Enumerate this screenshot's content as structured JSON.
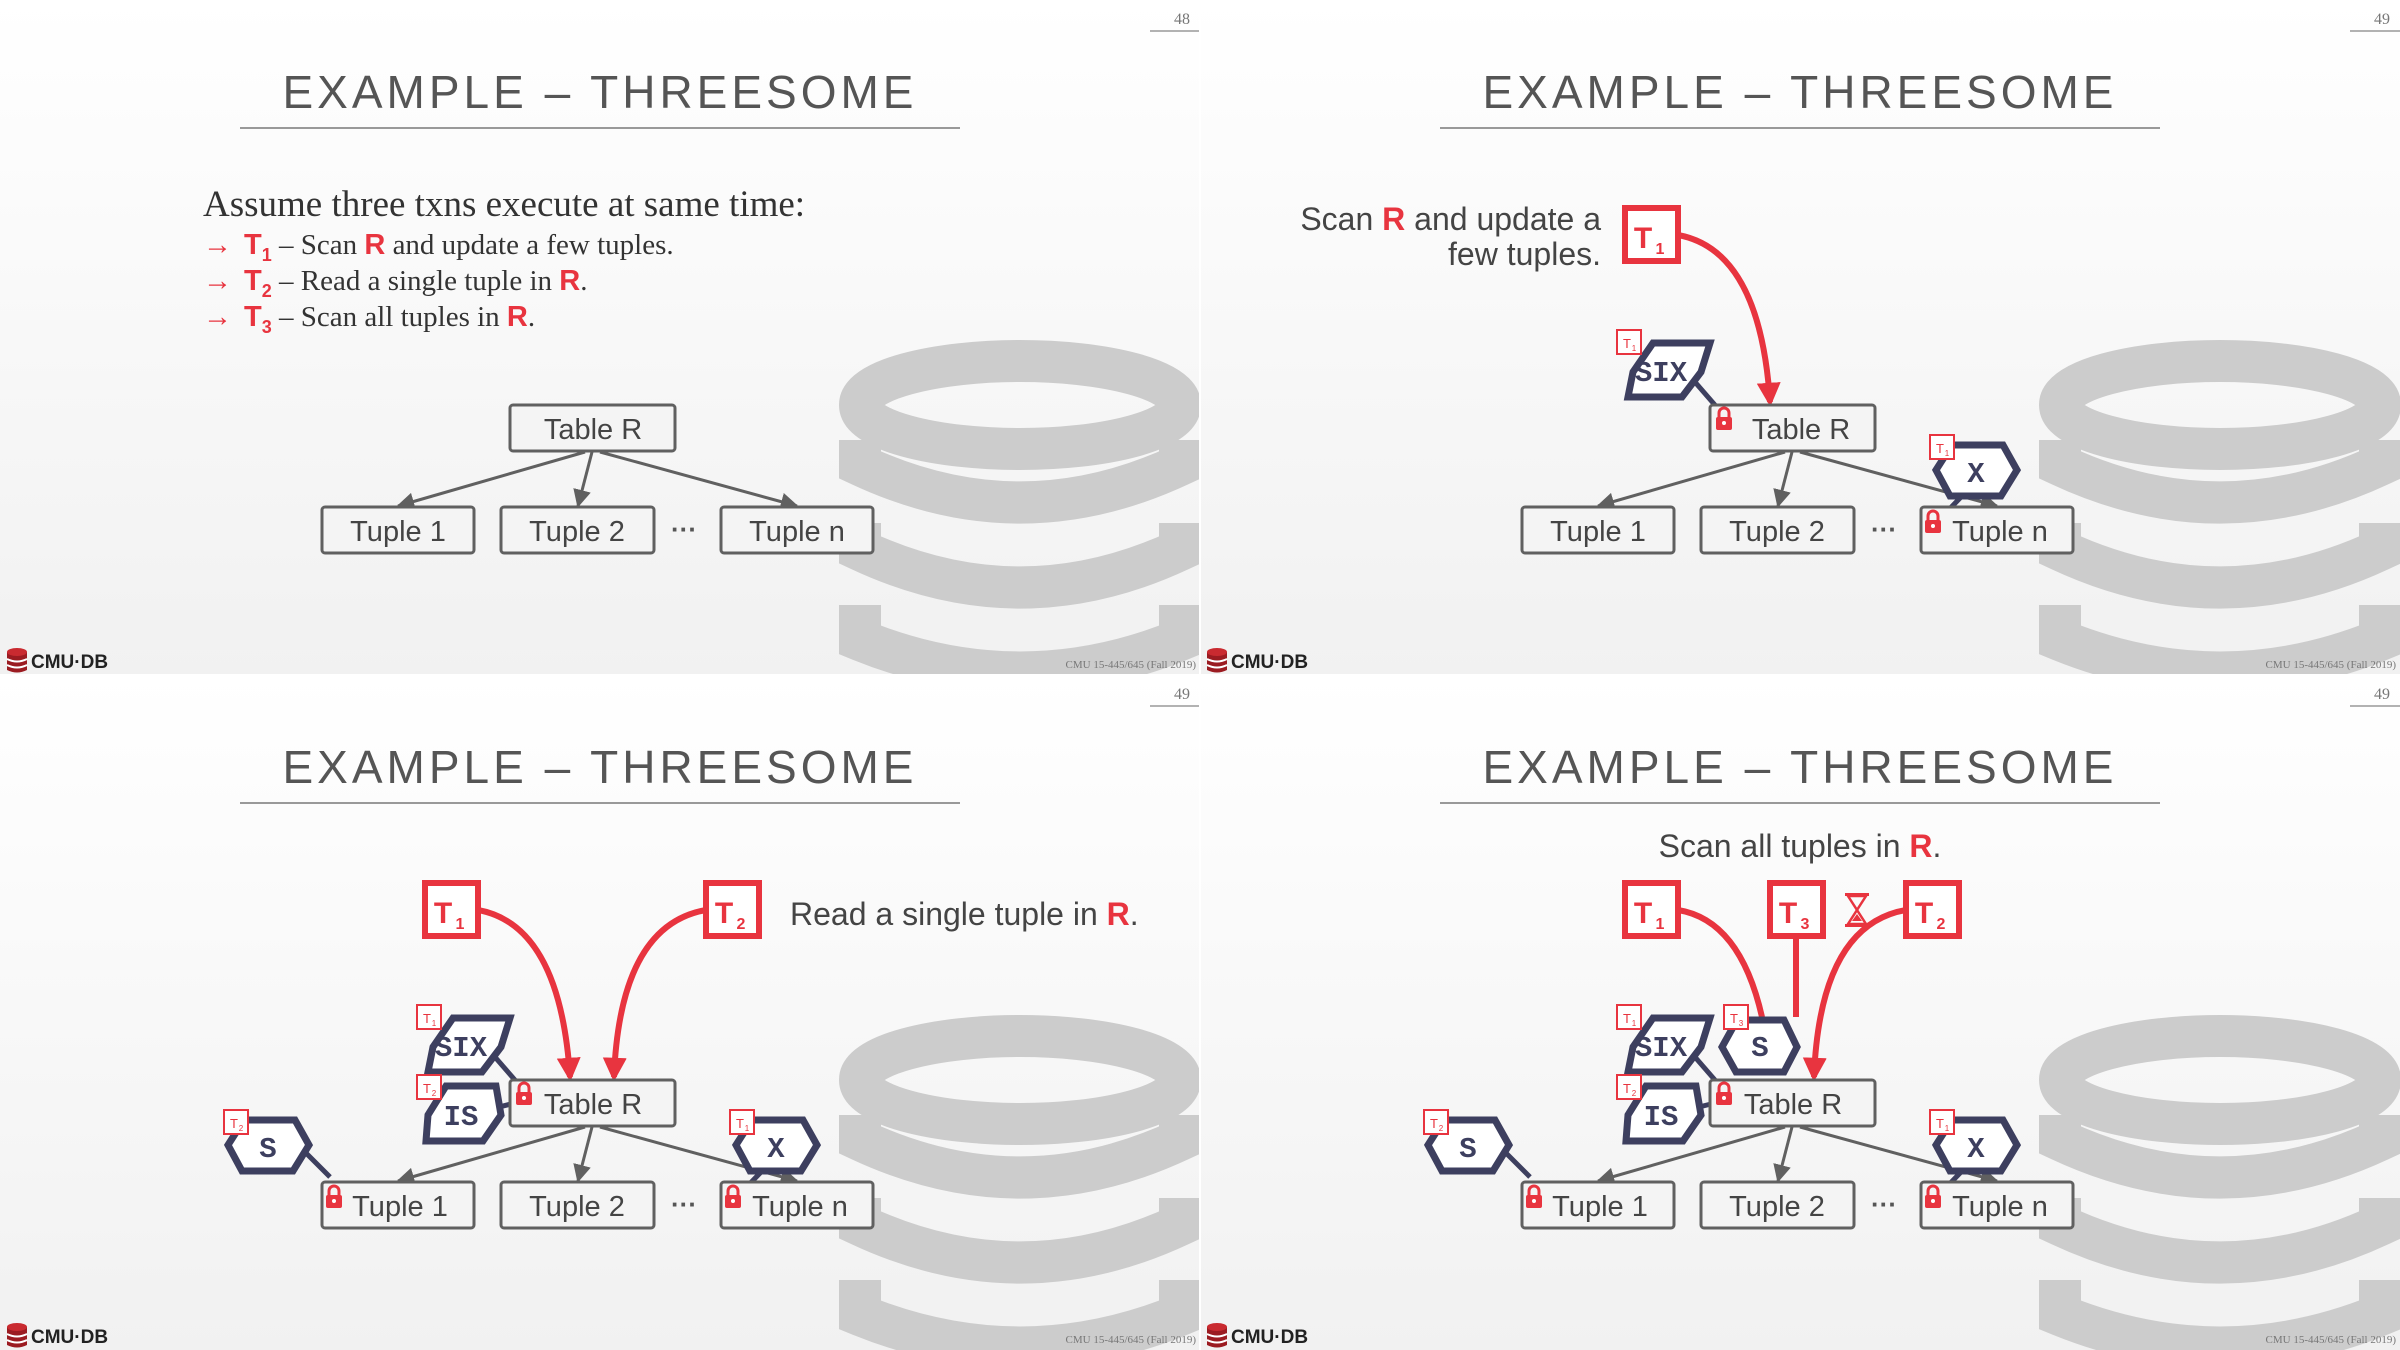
{
  "slides": [
    {
      "number": "48",
      "title": "EXAMPLE – THREESOME",
      "intro": "Assume three txns execute at same time:",
      "bullets": [
        {
          "arrow": "→",
          "txn": "T",
          "sub": "1",
          "pre": " – Scan ",
          "bold": "R",
          "post": " and update a few tuples."
        },
        {
          "arrow": "→",
          "txn": "T",
          "sub": "2",
          "pre": " – Read a single tuple in ",
          "bold": "R",
          "post": "."
        },
        {
          "arrow": "→",
          "txn": "T",
          "sub": "3",
          "pre": " – Scan all tuples in ",
          "bold": "R",
          "post": "."
        }
      ],
      "tree": {
        "table": "Table R",
        "tuple1": "Tuple 1",
        "tuple2": "Tuple 2",
        "ellipsis": "···",
        "tuplen": "Tuple n"
      },
      "footer_logo": "CMU·DB",
      "footer_course": "CMU 15-445/645 (Fall 2019)"
    },
    {
      "number": "49",
      "title": "EXAMPLE – THREESOME",
      "caption_line1_pre": "Scan ",
      "caption_line1_bold": "R",
      "caption_line1_post": " and update a",
      "caption_line2": "few tuples.",
      "txn_t1": {
        "letter": "T",
        "sub": "1"
      },
      "locks": {
        "six": "SIX",
        "x": "X",
        "badge_t1": "T",
        "badge_sub": "1"
      },
      "tree": {
        "table": "Table R",
        "tuple1": "Tuple 1",
        "tuple2": "Tuple 2",
        "ellipsis": "···",
        "tuplen": "Tuple n"
      },
      "footer_logo": "CMU·DB",
      "footer_course": "CMU 15-445/645 (Fall 2019)"
    },
    {
      "number": "49",
      "title": "EXAMPLE – THREESOME",
      "caption_pre": "Read a single tuple in ",
      "caption_bold": "R",
      "caption_post": ".",
      "txn_t1": {
        "letter": "T",
        "sub": "1"
      },
      "txn_t2": {
        "letter": "T",
        "sub": "2"
      },
      "locks": {
        "six": "SIX",
        "is": "IS",
        "s": "S",
        "x": "X"
      },
      "badges": {
        "t": "T",
        "one": "1",
        "two": "2"
      },
      "tree": {
        "table": "Table R",
        "tuple1": "Tuple 1",
        "tuple2": "Tuple 2",
        "ellipsis": "···",
        "tuplen": "Tuple n"
      },
      "footer_logo": "CMU·DB",
      "footer_course": "CMU 15-445/645 (Fall 2019)"
    },
    {
      "number": "49",
      "title": "EXAMPLE – THREESOME",
      "caption_pre": "Scan all tuples in ",
      "caption_bold": "R",
      "caption_post": ".",
      "txn_t1": {
        "letter": "T",
        "sub": "1"
      },
      "txn_t3": {
        "letter": "T",
        "sub": "3"
      },
      "txn_t2": {
        "letter": "T",
        "sub": "2"
      },
      "locks": {
        "six": "SIX",
        "s_t3": "S",
        "is": "IS",
        "s": "S",
        "x": "X"
      },
      "badges": {
        "t": "T",
        "one": "1",
        "two": "2",
        "three": "3"
      },
      "tree": {
        "table": "Table R",
        "tuple1": "Tuple 1",
        "tuple2": "Tuple 2",
        "ellipsis": "···",
        "tuplen": "Tuple n"
      },
      "footer_logo": "CMU·DB",
      "footer_course": "CMU 15-445/645 (Fall 2019)"
    }
  ],
  "colors": {
    "accent_red": "#e8343f",
    "lock_navy": "#3d3f5f",
    "box_gray": "#606060",
    "title_gray": "#555555",
    "db_gray": "#cccccc"
  },
  "icons": {
    "lock": "padlock-icon",
    "wait": "hourglass-icon",
    "logo": "cmu-db-logo-icon",
    "db": "database-cylinder-icon"
  }
}
